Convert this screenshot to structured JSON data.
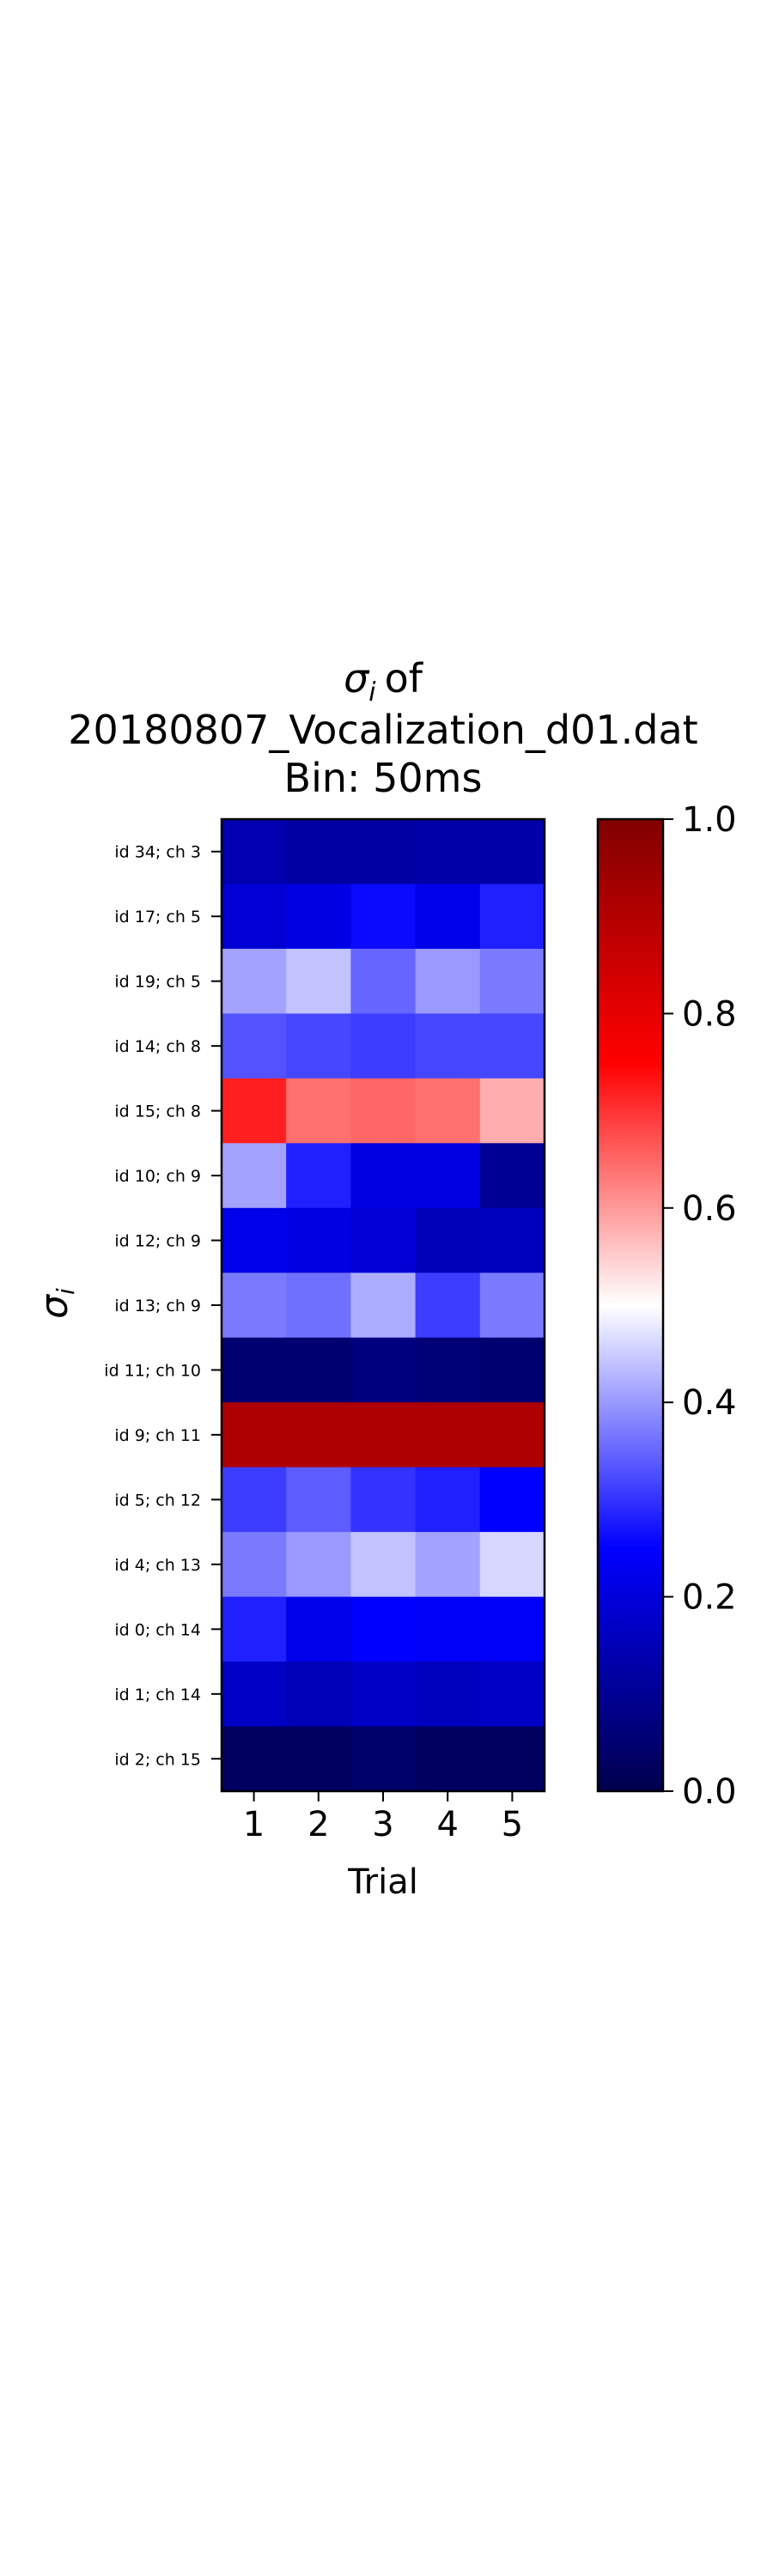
{
  "chart_data": {
    "type": "heatmap",
    "title_lines": [
      "of",
      "20180807_Vocalization_d01.dat",
      "Bin: 50ms"
    ],
    "title_symbol": "σ",
    "title_subscript": "i",
    "xlabel": "Trial",
    "ylabel_symbol": "σ",
    "ylabel_subscript": "i",
    "x": [
      "1",
      "2",
      "3",
      "4",
      "5"
    ],
    "y": [
      "id 34; ch 3",
      "id 17; ch 5",
      "id 19; ch 5",
      "id 14; ch 8",
      "id 15; ch 8",
      "id 10; ch 9",
      "id 12; ch 9",
      "id 13; ch 9",
      "id 11; ch 10",
      "id 9; ch 11",
      "id 5; ch 12",
      "id 4; ch 13",
      "id 0; ch 14",
      "id 1; ch 14",
      "id 2; ch 15"
    ],
    "values": [
      [
        0.14,
        0.12,
        0.12,
        0.13,
        0.13
      ],
      [
        0.19,
        0.21,
        0.26,
        0.22,
        0.28
      ],
      [
        0.41,
        0.44,
        0.35,
        0.4,
        0.37
      ],
      [
        0.33,
        0.32,
        0.31,
        0.32,
        0.32
      ],
      [
        0.72,
        0.64,
        0.65,
        0.64,
        0.58
      ],
      [
        0.41,
        0.28,
        0.21,
        0.21,
        0.1
      ],
      [
        0.22,
        0.21,
        0.19,
        0.15,
        0.16
      ],
      [
        0.37,
        0.36,
        0.42,
        0.31,
        0.37
      ],
      [
        0.05,
        0.05,
        0.07,
        0.06,
        0.05
      ],
      [
        0.91,
        0.91,
        0.91,
        0.91,
        0.91
      ],
      [
        0.31,
        0.34,
        0.3,
        0.28,
        0.25
      ],
      [
        0.37,
        0.4,
        0.44,
        0.41,
        0.46
      ],
      [
        0.28,
        0.22,
        0.25,
        0.24,
        0.24
      ],
      [
        0.17,
        0.15,
        0.17,
        0.16,
        0.17
      ],
      [
        0.03,
        0.03,
        0.04,
        0.03,
        0.03
      ]
    ],
    "colorbar": {
      "colormap": "seismic",
      "range": [
        0.0,
        1.0
      ],
      "ticks": [
        "0.0",
        "0.2",
        "0.4",
        "0.6",
        "0.8",
        "1.0"
      ]
    }
  }
}
